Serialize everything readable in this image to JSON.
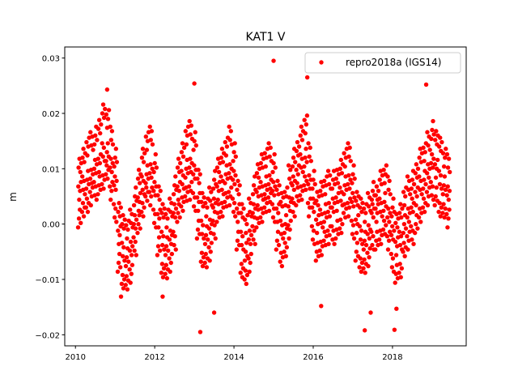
{
  "chart_data": {
    "type": "scatter",
    "title": "KAT1 V",
    "xlabel": "",
    "ylabel": "m",
    "xlim": [
      2009.73,
      2019.86
    ],
    "ylim": [
      -0.022,
      0.032
    ],
    "xticks": [
      2010,
      2012,
      2014,
      2016,
      2018
    ],
    "xtick_labels": [
      "2010",
      "2012",
      "2014",
      "2016",
      "2018"
    ],
    "yticks": [
      -0.02,
      -0.01,
      0.0,
      0.01,
      0.02,
      0.03
    ],
    "ytick_labels": [
      "−0.02",
      "−0.01",
      "0.00",
      "0.01",
      "0.02",
      "0.03"
    ],
    "grid": false,
    "legend": {
      "placement": "top-right",
      "entries": [
        "repro2018a (IGS14)"
      ]
    },
    "series": [
      {
        "name": "repro2018a (IGS14)",
        "color": "#ff0000",
        "x": [
          2010.1,
          2010.2,
          2010.3,
          2010.4,
          2010.5,
          2010.6,
          2010.7,
          2010.8,
          2010.9,
          2011.0,
          2011.1,
          2011.2,
          2011.3,
          2011.4,
          2011.5,
          2011.6,
          2011.7,
          2011.8,
          2011.9,
          2012.0,
          2012.1,
          2012.2,
          2012.3,
          2012.4,
          2012.5,
          2012.6,
          2012.7,
          2012.8,
          2012.9,
          2013.0,
          2013.1,
          2013.2,
          2013.3,
          2013.4,
          2013.5,
          2013.6,
          2013.7,
          2013.8,
          2013.9,
          2014.0,
          2014.1,
          2014.2,
          2014.3,
          2014.4,
          2014.5,
          2014.6,
          2014.7,
          2014.8,
          2014.9,
          2015.0,
          2015.1,
          2015.2,
          2015.3,
          2015.4,
          2015.5,
          2015.6,
          2015.7,
          2015.8,
          2015.9,
          2016.0,
          2016.1,
          2016.2,
          2016.3,
          2016.4,
          2016.5,
          2016.6,
          2016.7,
          2016.8,
          2016.9,
          2017.0,
          2017.1,
          2017.2,
          2017.3,
          2017.4,
          2017.5,
          2017.6,
          2017.7,
          2017.8,
          2017.9,
          2018.0,
          2018.1,
          2018.2,
          2018.3,
          2018.4,
          2018.5,
          2018.6,
          2018.7,
          2018.8,
          2018.9,
          2019.0,
          2019.1,
          2019.2,
          2019.3,
          2019.4
        ],
        "y": [
          [
            0.001,
            0.006,
            0.011
          ],
          [
            0.003,
            0.007,
            0.012
          ],
          [
            0.003,
            0.008,
            0.014
          ],
          [
            0.005,
            0.009,
            0.015
          ],
          [
            0.006,
            0.01,
            0.016
          ],
          [
            0.007,
            0.011,
            0.018
          ],
          [
            0.008,
            0.013,
            0.02
          ],
          [
            0.009,
            0.013,
            0.019
          ],
          [
            0.006,
            0.011,
            0.016
          ],
          [
            0.002,
            0.007,
            0.012
          ],
          [
            -0.007,
            -0.002,
            0.003
          ],
          [
            -0.01,
            -0.005,
            0.0
          ],
          [
            -0.011,
            -0.006,
            -0.001
          ],
          [
            -0.009,
            -0.004,
            0.001
          ],
          [
            -0.004,
            0.0,
            0.005
          ],
          [
            0.0,
            0.004,
            0.009
          ],
          [
            0.003,
            0.007,
            0.012
          ],
          [
            0.005,
            0.009,
            0.015
          ],
          [
            0.005,
            0.01,
            0.016
          ],
          [
            0.001,
            0.006,
            0.011
          ],
          [
            -0.004,
            0.001,
            0.006
          ],
          [
            -0.008,
            -0.003,
            0.002
          ],
          [
            -0.009,
            -0.004,
            0.001
          ],
          [
            -0.007,
            -0.002,
            0.003
          ],
          [
            -0.003,
            0.002,
            0.007
          ],
          [
            0.002,
            0.006,
            0.011
          ],
          [
            0.004,
            0.008,
            0.013
          ],
          [
            0.005,
            0.01,
            0.016
          ],
          [
            0.006,
            0.011,
            0.017
          ],
          [
            0.004,
            0.009,
            0.015
          ],
          [
            -0.001,
            0.004,
            0.009
          ],
          [
            -0.006,
            -0.001,
            0.004
          ],
          [
            -0.007,
            -0.002,
            0.003
          ],
          [
            -0.005,
            0.0,
            0.005
          ],
          [
            -0.001,
            0.003,
            0.008
          ],
          [
            0.002,
            0.006,
            0.011
          ],
          [
            0.003,
            0.007,
            0.012
          ],
          [
            0.004,
            0.009,
            0.014
          ],
          [
            0.005,
            0.01,
            0.016
          ],
          [
            0.003,
            0.008,
            0.013
          ],
          [
            -0.003,
            0.002,
            0.007
          ],
          [
            -0.008,
            -0.003,
            0.002
          ],
          [
            -0.01,
            -0.005,
            0.0
          ],
          [
            -0.007,
            -0.002,
            0.003
          ],
          [
            -0.002,
            0.002,
            0.007
          ],
          [
            0.001,
            0.005,
            0.01
          ],
          [
            0.002,
            0.006,
            0.011
          ],
          [
            0.003,
            0.007,
            0.012
          ],
          [
            0.004,
            0.008,
            0.013
          ],
          [
            0.002,
            0.006,
            0.011
          ],
          [
            -0.003,
            0.002,
            0.007
          ],
          [
            -0.006,
            -0.001,
            0.004
          ],
          [
            -0.005,
            0.0,
            0.005
          ],
          [
            -0.001,
            0.004,
            0.009
          ],
          [
            0.003,
            0.007,
            0.012
          ],
          [
            0.005,
            0.009,
            0.014
          ],
          [
            0.006,
            0.011,
            0.016
          ],
          [
            0.007,
            0.012,
            0.018
          ],
          [
            0.003,
            0.008,
            0.013
          ],
          [
            -0.002,
            0.003,
            0.008
          ],
          [
            -0.005,
            0.0,
            0.005
          ],
          [
            -0.004,
            0.001,
            0.006
          ],
          [
            -0.003,
            0.002,
            0.007
          ],
          [
            -0.002,
            0.003,
            0.008
          ],
          [
            -0.002,
            0.003,
            0.008
          ],
          [
            -0.001,
            0.004,
            0.009
          ],
          [
            0.0,
            0.005,
            0.01
          ],
          [
            0.002,
            0.007,
            0.012
          ],
          [
            0.003,
            0.008,
            0.013
          ],
          [
            -0.001,
            0.004,
            0.009
          ],
          [
            -0.005,
            0.0,
            0.005
          ],
          [
            -0.007,
            -0.002,
            0.003
          ],
          [
            -0.008,
            -0.003,
            0.002
          ],
          [
            -0.006,
            -0.001,
            0.004
          ],
          [
            -0.003,
            0.002,
            0.006
          ],
          [
            -0.003,
            0.002,
            0.006
          ],
          [
            -0.002,
            0.003,
            0.008
          ],
          [
            -0.001,
            0.004,
            0.009
          ],
          [
            -0.003,
            0.002,
            0.007
          ],
          [
            -0.007,
            -0.002,
            0.003
          ],
          [
            -0.009,
            -0.004,
            0.001
          ],
          [
            -0.008,
            -0.003,
            0.002
          ],
          [
            -0.005,
            0.0,
            0.005
          ],
          [
            -0.003,
            0.002,
            0.007
          ],
          [
            -0.002,
            0.003,
            0.008
          ],
          [
            0.0,
            0.005,
            0.01
          ],
          [
            0.002,
            0.007,
            0.012
          ],
          [
            0.003,
            0.008,
            0.013
          ],
          [
            0.005,
            0.01,
            0.015
          ],
          [
            0.006,
            0.011,
            0.017
          ],
          [
            0.005,
            0.01,
            0.016
          ],
          [
            0.003,
            0.008,
            0.014
          ],
          [
            0.002,
            0.007,
            0.012
          ],
          [
            0.001,
            0.006,
            0.011
          ]
        ],
        "outliers": [
          [
            2010.8,
            0.0243
          ],
          [
            2011.15,
            -0.0131
          ],
          [
            2012.2,
            -0.0131
          ],
          [
            2013.0,
            0.0254
          ],
          [
            2013.15,
            -0.0195
          ],
          [
            2013.5,
            -0.016
          ],
          [
            2015.0,
            0.0295
          ],
          [
            2015.85,
            0.0265
          ],
          [
            2016.2,
            -0.0148
          ],
          [
            2017.3,
            -0.0192
          ],
          [
            2017.45,
            -0.016
          ],
          [
            2018.05,
            -0.0191
          ],
          [
            2018.1,
            -0.0153
          ],
          [
            2018.85,
            0.0252
          ]
        ]
      }
    ]
  }
}
